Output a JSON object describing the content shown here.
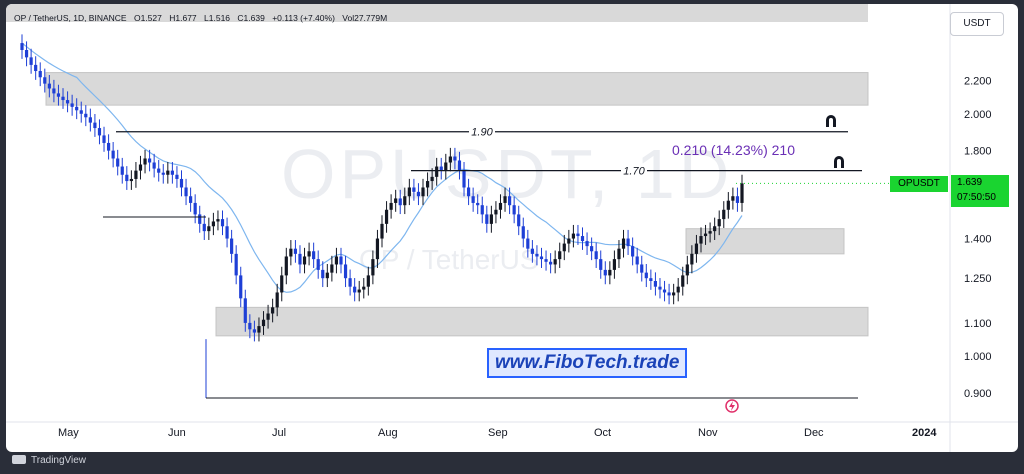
{
  "header": {
    "symbol": "OP / TetherUS, 1D, BINANCE",
    "open": "O1.527",
    "high": "H1.677",
    "low": "L1.516",
    "close": "C1.639",
    "change": "+0.113 (+7.40%)",
    "volume": "Vol27.779M"
  },
  "currency_button": "USDT",
  "watermark": {
    "main": "OPUSDT, 1D",
    "sub": "OP / TetherUS"
  },
  "last_price": {
    "ticker": "OPUSDT",
    "value": "1.639",
    "countdown": "07:50:50"
  },
  "measure_label": "0.210 (14.23%) 210",
  "brand_label": "www.FiboTech.trade",
  "footer": {
    "logo_text": "TradingView"
  },
  "colors": {
    "up": "#131722",
    "down": "#1e3fd6",
    "ma": "#7eb6ef",
    "zone": "#d9d9d9",
    "price_tag": "#1ad430"
  },
  "chart_data": {
    "type": "candlestick",
    "y_scale": "log",
    "ylim": [
      0.86,
      2.6
    ],
    "y_ticks": [
      "2.200",
      "2.000",
      "1.800",
      "1.400",
      "1.250",
      "1.100",
      "1.000",
      "0.900"
    ],
    "x_ticks": [
      "May",
      "Jun",
      "Jul",
      "Aug",
      "Sep",
      "Oct",
      "Nov",
      "Dec",
      "2024"
    ],
    "levels": [
      {
        "label": "1.90",
        "value": 1.9
      },
      {
        "label": "1.70",
        "value": 1.7
      }
    ],
    "zones": [
      {
        "low": 2.05,
        "high": 2.25
      },
      {
        "low": 1.34,
        "high": 1.44
      },
      {
        "low": 1.06,
        "high": 1.15
      }
    ],
    "close_series": [
      2.4,
      2.35,
      2.3,
      2.26,
      2.22,
      2.18,
      2.15,
      2.12,
      2.1,
      2.08,
      2.06,
      2.04,
      2.02,
      2.0,
      1.98,
      1.95,
      1.92,
      1.88,
      1.84,
      1.8,
      1.76,
      1.72,
      1.68,
      1.65,
      1.66,
      1.7,
      1.73,
      1.76,
      1.74,
      1.71,
      1.69,
      1.68,
      1.7,
      1.68,
      1.66,
      1.62,
      1.58,
      1.55,
      1.5,
      1.46,
      1.43,
      1.45,
      1.47,
      1.48,
      1.45,
      1.4,
      1.34,
      1.26,
      1.18,
      1.1,
      1.08,
      1.07,
      1.09,
      1.11,
      1.13,
      1.15,
      1.2,
      1.26,
      1.33,
      1.36,
      1.34,
      1.3,
      1.33,
      1.35,
      1.32,
      1.28,
      1.25,
      1.27,
      1.3,
      1.33,
      1.3,
      1.25,
      1.22,
      1.2,
      1.21,
      1.22,
      1.26,
      1.32,
      1.4,
      1.46,
      1.52,
      1.55,
      1.57,
      1.54,
      1.58,
      1.62,
      1.6,
      1.58,
      1.62,
      1.65,
      1.67,
      1.72,
      1.7,
      1.74,
      1.77,
      1.75,
      1.7,
      1.62,
      1.58,
      1.55,
      1.54,
      1.5,
      1.46,
      1.5,
      1.52,
      1.55,
      1.58,
      1.54,
      1.5,
      1.45,
      1.4,
      1.36,
      1.34,
      1.33,
      1.32,
      1.31,
      1.3,
      1.32,
      1.35,
      1.38,
      1.4,
      1.42,
      1.41,
      1.39,
      1.37,
      1.35,
      1.32,
      1.28,
      1.26,
      1.28,
      1.32,
      1.36,
      1.4,
      1.37,
      1.33,
      1.3,
      1.27,
      1.25,
      1.24,
      1.22,
      1.21,
      1.2,
      1.19,
      1.2,
      1.22,
      1.26,
      1.3,
      1.34,
      1.38,
      1.41,
      1.42,
      1.43,
      1.45,
      1.48,
      1.52,
      1.56,
      1.58,
      1.55,
      1.639
    ]
  }
}
